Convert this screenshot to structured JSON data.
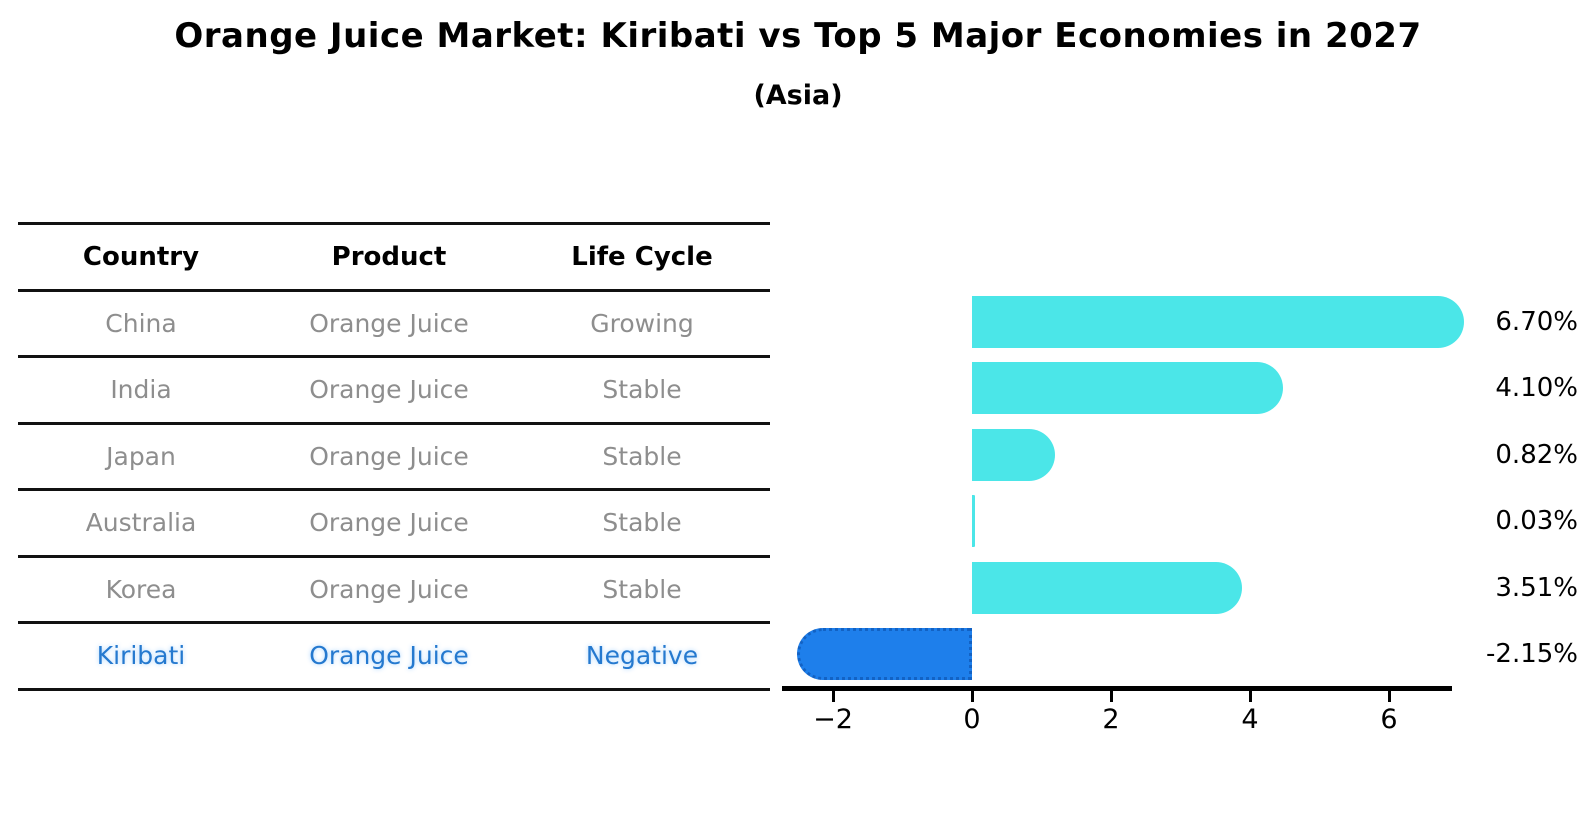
{
  "title": "Orange Juice Market: Kiribati vs Top 5 Major Economies in 2027",
  "subtitle": "(Asia)",
  "table": {
    "headers": [
      "Country",
      "Product",
      "Life Cycle"
    ],
    "rows": [
      {
        "country": "China",
        "product": "Orange Juice",
        "life_cycle": "Growing",
        "highlight": false
      },
      {
        "country": "India",
        "product": "Orange Juice",
        "life_cycle": "Stable",
        "highlight": false
      },
      {
        "country": "Japan",
        "product": "Orange Juice",
        "life_cycle": "Stable",
        "highlight": false
      },
      {
        "country": "Australia",
        "product": "Orange Juice",
        "life_cycle": "Stable",
        "highlight": false
      },
      {
        "country": "Korea",
        "product": "Orange Juice",
        "life_cycle": "Stable",
        "highlight": false
      },
      {
        "country": "Kiribati",
        "product": "Orange Juice",
        "life_cycle": "Negative",
        "highlight": true
      }
    ]
  },
  "chart_data": {
    "type": "bar",
    "orientation": "horizontal",
    "title": "Orange Juice Market: Kiribati vs Top 5 Major Economies in 2027",
    "subtitle": "(Asia)",
    "categories": [
      "China",
      "India",
      "Japan",
      "Australia",
      "Korea",
      "Kiribati"
    ],
    "values": [
      6.7,
      4.1,
      0.82,
      0.03,
      3.51,
      -2.15
    ],
    "value_labels": [
      "6.70%",
      "4.10%",
      "0.82%",
      "0.03%",
      "3.51%",
      "-2.15%"
    ],
    "x_ticks": [
      -2,
      0,
      2,
      4,
      6
    ],
    "x_tick_labels": [
      "−2",
      "0",
      "2",
      "4",
      "6"
    ],
    "xlim": [
      -2.73,
      6.9
    ],
    "grid": false,
    "legend": "none",
    "bar_color": "#4BE6E8",
    "highlight_color": "#1E7FEB",
    "highlight_border_color": "#1262c4",
    "highlight_index": 5,
    "axis_color": "#000000",
    "table_text_color": "#8e8e8e",
    "highlight_text_color": "#2579cf"
  }
}
